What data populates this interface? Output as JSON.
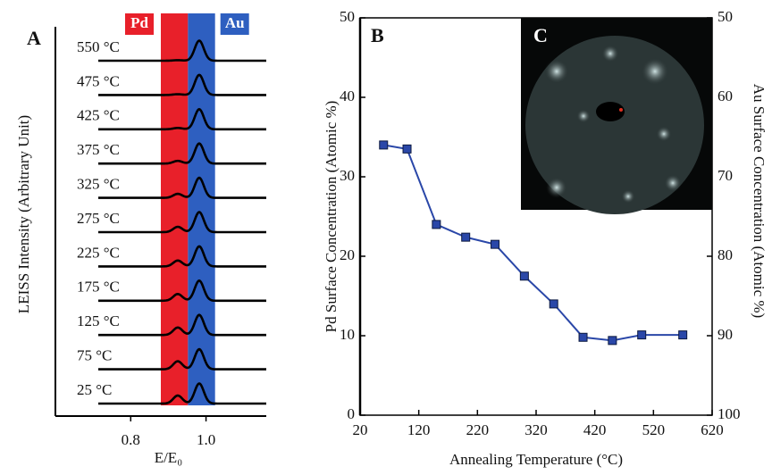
{
  "chart_data": [
    {
      "type": "spectra",
      "title": "A",
      "ylabel": "LEISS Intensity (Arbitrary Unit)",
      "xlabel": "E/E₀",
      "xlim": [
        0.6,
        1.16
      ],
      "xticks": [
        0.8,
        {
          "value": 1,
          "label": "1.0"
        }
      ],
      "bands": [
        {
          "name": "Pd",
          "color": "#e8202a",
          "range": [
            0.88,
            0.952
          ]
        },
        {
          "name": "Au",
          "color": "#2e5fc0",
          "range": [
            0.952,
            1.024
          ]
        }
      ],
      "peak_positions": [
        0.925,
        0.982
      ],
      "series": [
        {
          "name": "550 °C",
          "values": [
            0.02,
            0.75
          ]
        },
        {
          "name": "475 °C",
          "values": [
            0.03,
            0.75
          ]
        },
        {
          "name": "425 °C",
          "values": [
            0.05,
            0.75
          ]
        },
        {
          "name": "375 °C",
          "values": [
            0.1,
            0.75
          ]
        },
        {
          "name": "325 °C",
          "values": [
            0.15,
            0.75
          ]
        },
        {
          "name": "275 °C",
          "values": [
            0.2,
            0.75
          ]
        },
        {
          "name": "225 °C",
          "values": [
            0.22,
            0.75
          ]
        },
        {
          "name": "175 °C",
          "values": [
            0.25,
            0.75
          ]
        },
        {
          "name": "125 °C",
          "values": [
            0.28,
            0.75
          ]
        },
        {
          "name": "75 °C",
          "values": [
            0.3,
            0.75
          ]
        },
        {
          "name": "25 °C",
          "values": [
            0.3,
            0.75
          ]
        }
      ]
    },
    {
      "type": "line",
      "title": "B",
      "inset_label": "C",
      "xlabel": "Annealing Temperature (°C)",
      "ylabel": "Pd Surface Concentration (Atomic %)",
      "y2label": "Au Surface Concentration (Atomic %)",
      "xlim": [
        20,
        620
      ],
      "xticks": [
        20,
        120,
        220,
        320,
        420,
        520,
        620
      ],
      "ylim": [
        0,
        50
      ],
      "yticks": [
        0,
        10,
        20,
        30,
        40,
        50
      ],
      "y2lim": [
        100,
        50
      ],
      "y2ticks": [
        50,
        60,
        70,
        80,
        90,
        100
      ],
      "x": [
        60,
        100,
        150,
        200,
        250,
        300,
        350,
        400,
        450,
        500,
        570
      ],
      "series": [
        {
          "color": "#2a47a8",
          "values": [
            34,
            33.5,
            24,
            22.4,
            21.5,
            17.5,
            14,
            9.8,
            9.4,
            10.1,
            10.1
          ]
        }
      ]
    }
  ]
}
